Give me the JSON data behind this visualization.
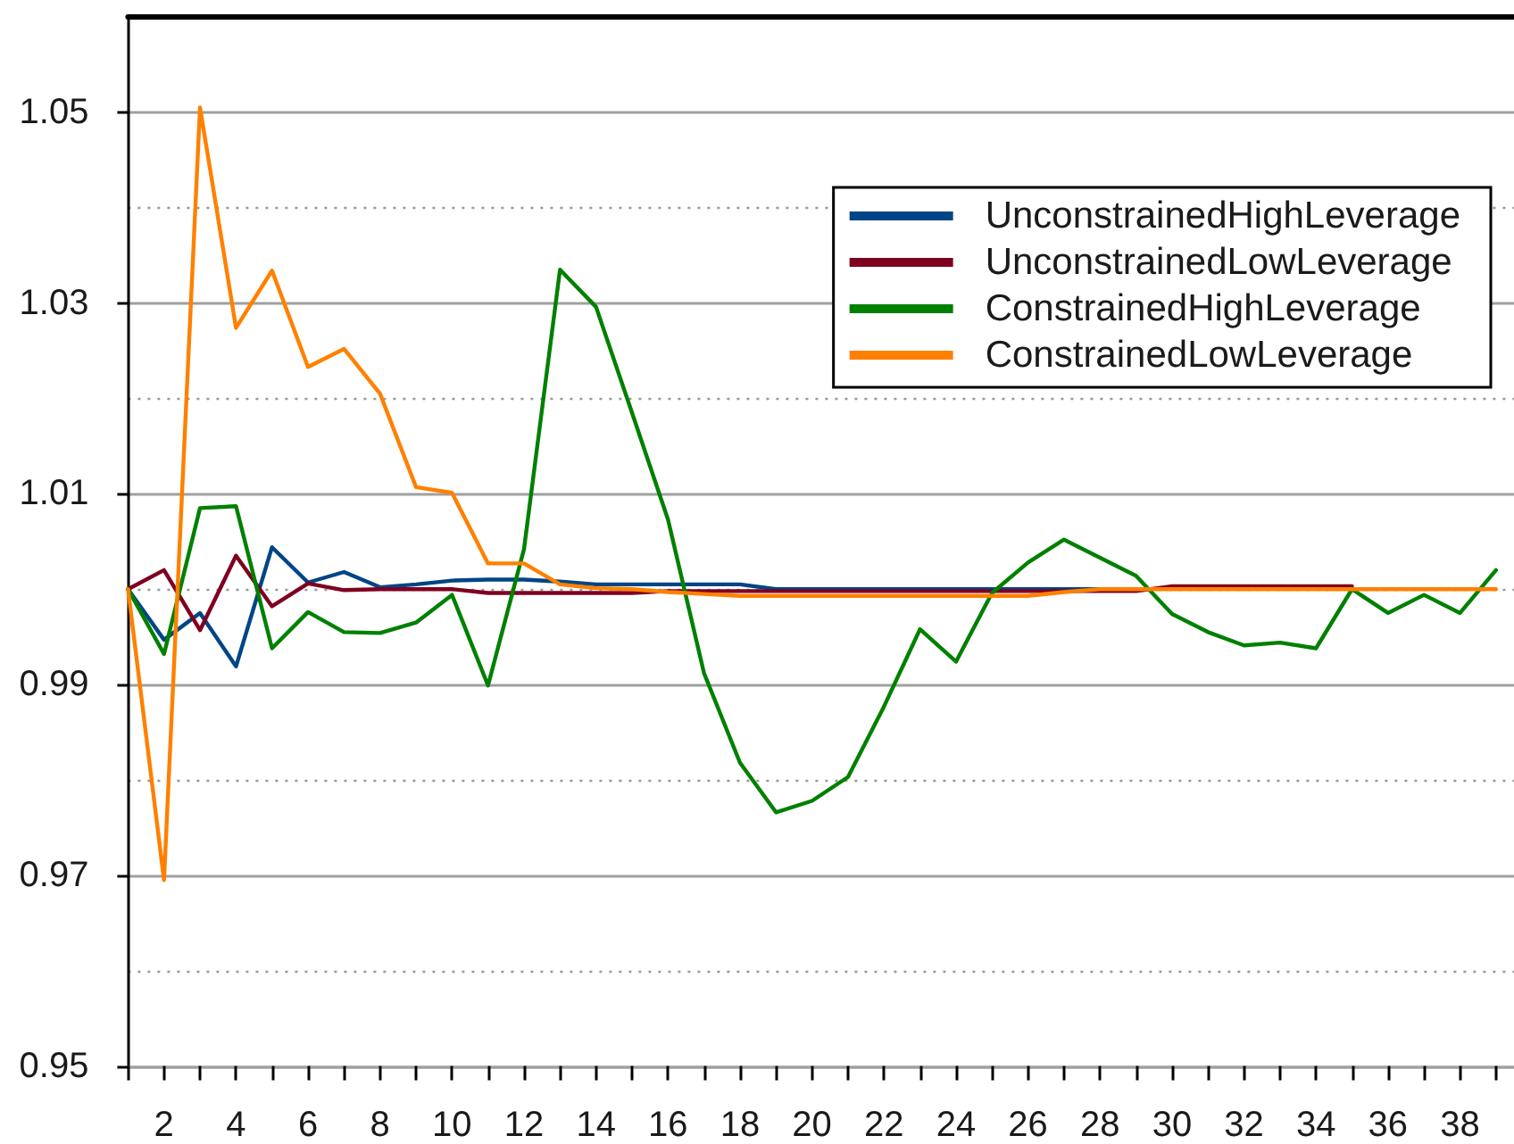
{
  "chart_data": {
    "type": "line",
    "x": [
      1,
      2,
      3,
      4,
      5,
      6,
      7,
      8,
      9,
      10,
      11,
      12,
      13,
      14,
      15,
      16,
      17,
      18,
      19,
      20,
      21,
      22,
      23,
      24,
      25,
      26,
      27,
      28,
      29,
      30,
      31,
      32,
      33,
      34,
      35,
      36,
      37,
      38,
      39
    ],
    "xlim": [
      1,
      39.5
    ],
    "xticks": [
      {
        "value": 1,
        "label": null
      },
      2,
      {
        "value": 3,
        "label": null
      },
      4,
      {
        "value": 5,
        "label": null
      },
      6,
      {
        "value": 7,
        "label": null
      },
      8,
      {
        "value": 9,
        "label": null
      },
      10,
      {
        "value": 11,
        "label": null
      },
      12,
      {
        "value": 13,
        "label": null
      },
      14,
      {
        "value": 15,
        "label": null
      },
      16,
      {
        "value": 17,
        "label": null
      },
      18,
      {
        "value": 19,
        "label": null
      },
      20,
      {
        "value": 21,
        "label": null
      },
      22,
      {
        "value": 23,
        "label": null
      },
      24,
      {
        "value": 25,
        "label": null
      },
      26,
      {
        "value": 27,
        "label": null
      },
      28,
      {
        "value": 29,
        "label": null
      },
      30,
      {
        "value": 31,
        "label": null
      },
      32,
      {
        "value": 33,
        "label": null
      },
      34,
      {
        "value": 35,
        "label": null
      },
      36,
      {
        "value": 37,
        "label": null
      },
      38,
      {
        "value": 39,
        "label": null
      }
    ],
    "ylim": [
      0.95,
      1.06
    ],
    "yticks": [
      0.95,
      {
        "value": 0.96,
        "label": null
      },
      0.97,
      {
        "value": 0.98,
        "label": null
      },
      0.99,
      {
        "value": 1.0,
        "label": null
      },
      1.01,
      {
        "value": 1.02,
        "label": null
      },
      1.03,
      {
        "value": 1.04,
        "label": null
      },
      1.05
    ],
    "grid": "y",
    "legend": "top right",
    "marker": "none",
    "series": [
      {
        "name": "UnconstrainedHighLeverage",
        "color": "#004586",
        "values": [
          1.0,
          0.9947,
          0.9975,
          0.9919,
          1.0044,
          1.0007,
          1.0018,
          1.0002,
          1.0005,
          1.0009,
          1.001,
          1.001,
          1.0008,
          1.0005,
          1.0005,
          1.0005,
          1.0005,
          1.0005,
          1.0,
          1.0,
          1.0,
          1.0,
          1.0,
          1.0,
          1.0,
          1.0,
          1.0,
          1.0,
          1.0,
          null,
          null,
          null,
          null,
          null,
          null,
          null,
          null,
          null,
          null
        ]
      },
      {
        "name": "UnconstrainedLowLeverage",
        "color": "#7e0021",
        "values": [
          1.0,
          1.002,
          0.9957,
          1.0035,
          0.9982,
          1.0006,
          0.9999,
          1.0,
          1.0,
          1.0,
          0.9996,
          0.9996,
          0.9996,
          0.9996,
          0.9996,
          0.9998,
          0.9998,
          0.9998,
          0.9998,
          0.9998,
          0.9998,
          0.9998,
          0.9998,
          0.9998,
          0.9998,
          0.9998,
          0.9998,
          0.9998,
          0.9998,
          1.0003,
          1.0003,
          1.0003,
          1.0003,
          1.0003,
          1.0003,
          null,
          null,
          null,
          null
        ]
      },
      {
        "name": "ConstrainedHighLeverage",
        "color": "#008000",
        "values": [
          1.0,
          0.9932,
          1.0085,
          1.0087,
          0.9938,
          0.9976,
          0.9955,
          0.9954,
          0.9965,
          0.9994,
          0.9899,
          1.0042,
          1.0335,
          1.0296,
          1.0185,
          1.0073,
          0.9912,
          0.9818,
          0.9766,
          0.9778,
          0.9803,
          0.9877,
          0.9958,
          0.9924,
          0.9996,
          1.0028,
          1.0052,
          1.0033,
          1.0014,
          0.9974,
          0.9955,
          0.9941,
          0.9944,
          0.9938,
          1.0,
          0.9975,
          0.9994,
          0.9975,
          1.002
        ]
      },
      {
        "name": "ConstrainedLowLeverage",
        "color": "#ff8000",
        "values": [
          1.0,
          0.9695,
          1.0505,
          1.0274,
          1.0334,
          1.0233,
          1.0252,
          1.0205,
          1.0107,
          1.0101,
          1.0027,
          1.0027,
          1.0005,
          1.0001,
          1.0,
          0.9997,
          0.9995,
          0.9993,
          0.9993,
          0.9993,
          0.9993,
          0.9993,
          0.9993,
          0.9993,
          0.9993,
          0.9993,
          0.9997,
          1.0,
          1.0,
          1.0,
          1.0,
          1.0,
          1.0,
          1.0,
          1.0,
          1.0,
          1.0,
          1.0,
          1.0
        ]
      }
    ]
  }
}
